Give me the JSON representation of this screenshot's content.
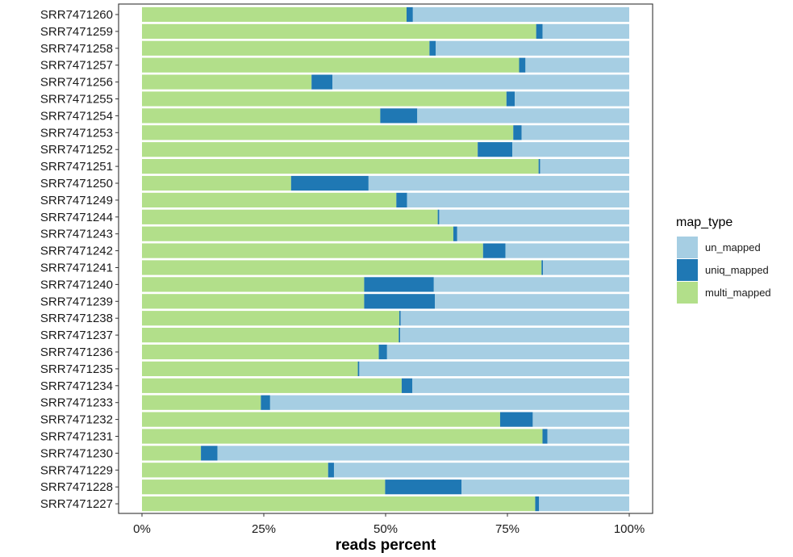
{
  "chart_data": {
    "type": "bar",
    "orientation": "horizontal",
    "stacked": true,
    "xlabel": "reads percent",
    "ylabel": "",
    "xlim": [
      0,
      1
    ],
    "x_ticks": [
      "0%",
      "25%",
      "50%",
      "75%",
      "100%"
    ],
    "legend_title": "map_type",
    "legend_position": "right",
    "categories": [
      "SRR7471260",
      "SRR7471259",
      "SRR7471258",
      "SRR7471257",
      "SRR7471256",
      "SRR7471255",
      "SRR7471254",
      "SRR7471253",
      "SRR7471252",
      "SRR7471251",
      "SRR7471250",
      "SRR7471249",
      "SRR7471244",
      "SRR7471243",
      "SRR7471242",
      "SRR7471241",
      "SRR7471240",
      "SRR7471239",
      "SRR7471238",
      "SRR7471237",
      "SRR7471236",
      "SRR7471235",
      "SRR7471234",
      "SRR7471233",
      "SRR7471232",
      "SRR7471231",
      "SRR7471230",
      "SRR7471229",
      "SRR7471228",
      "SRR7471227"
    ],
    "series": [
      {
        "name": "multi_mapped",
        "color": "#b2df8a",
        "values": [
          0.543,
          0.809,
          0.59,
          0.774,
          0.348,
          0.748,
          0.489,
          0.762,
          0.689,
          0.814,
          0.306,
          0.522,
          0.607,
          0.639,
          0.7,
          0.82,
          0.456,
          0.456,
          0.528,
          0.527,
          0.486,
          0.443,
          0.533,
          0.244,
          0.735,
          0.822,
          0.121,
          0.382,
          0.499,
          0.807
        ]
      },
      {
        "name": "uniq_mapped",
        "color": "#1f78b4",
        "values": [
          0.013,
          0.013,
          0.013,
          0.013,
          0.043,
          0.017,
          0.076,
          0.017,
          0.071,
          0.003,
          0.159,
          0.022,
          0.003,
          0.008,
          0.046,
          0.003,
          0.143,
          0.145,
          0.003,
          0.003,
          0.017,
          0.003,
          0.022,
          0.019,
          0.067,
          0.01,
          0.034,
          0.012,
          0.157,
          0.008
        ]
      },
      {
        "name": "un_mapped",
        "color": "#a6cee3",
        "values": [
          0.444,
          0.178,
          0.397,
          0.213,
          0.609,
          0.235,
          0.435,
          0.221,
          0.24,
          0.183,
          0.535,
          0.456,
          0.39,
          0.353,
          0.254,
          0.177,
          0.401,
          0.399,
          0.469,
          0.47,
          0.497,
          0.554,
          0.445,
          0.737,
          0.198,
          0.168,
          0.845,
          0.606,
          0.344,
          0.185
        ]
      }
    ],
    "legend_order": [
      "un_mapped",
      "uniq_mapped",
      "multi_mapped"
    ],
    "grid": false,
    "panel_border": true
  }
}
